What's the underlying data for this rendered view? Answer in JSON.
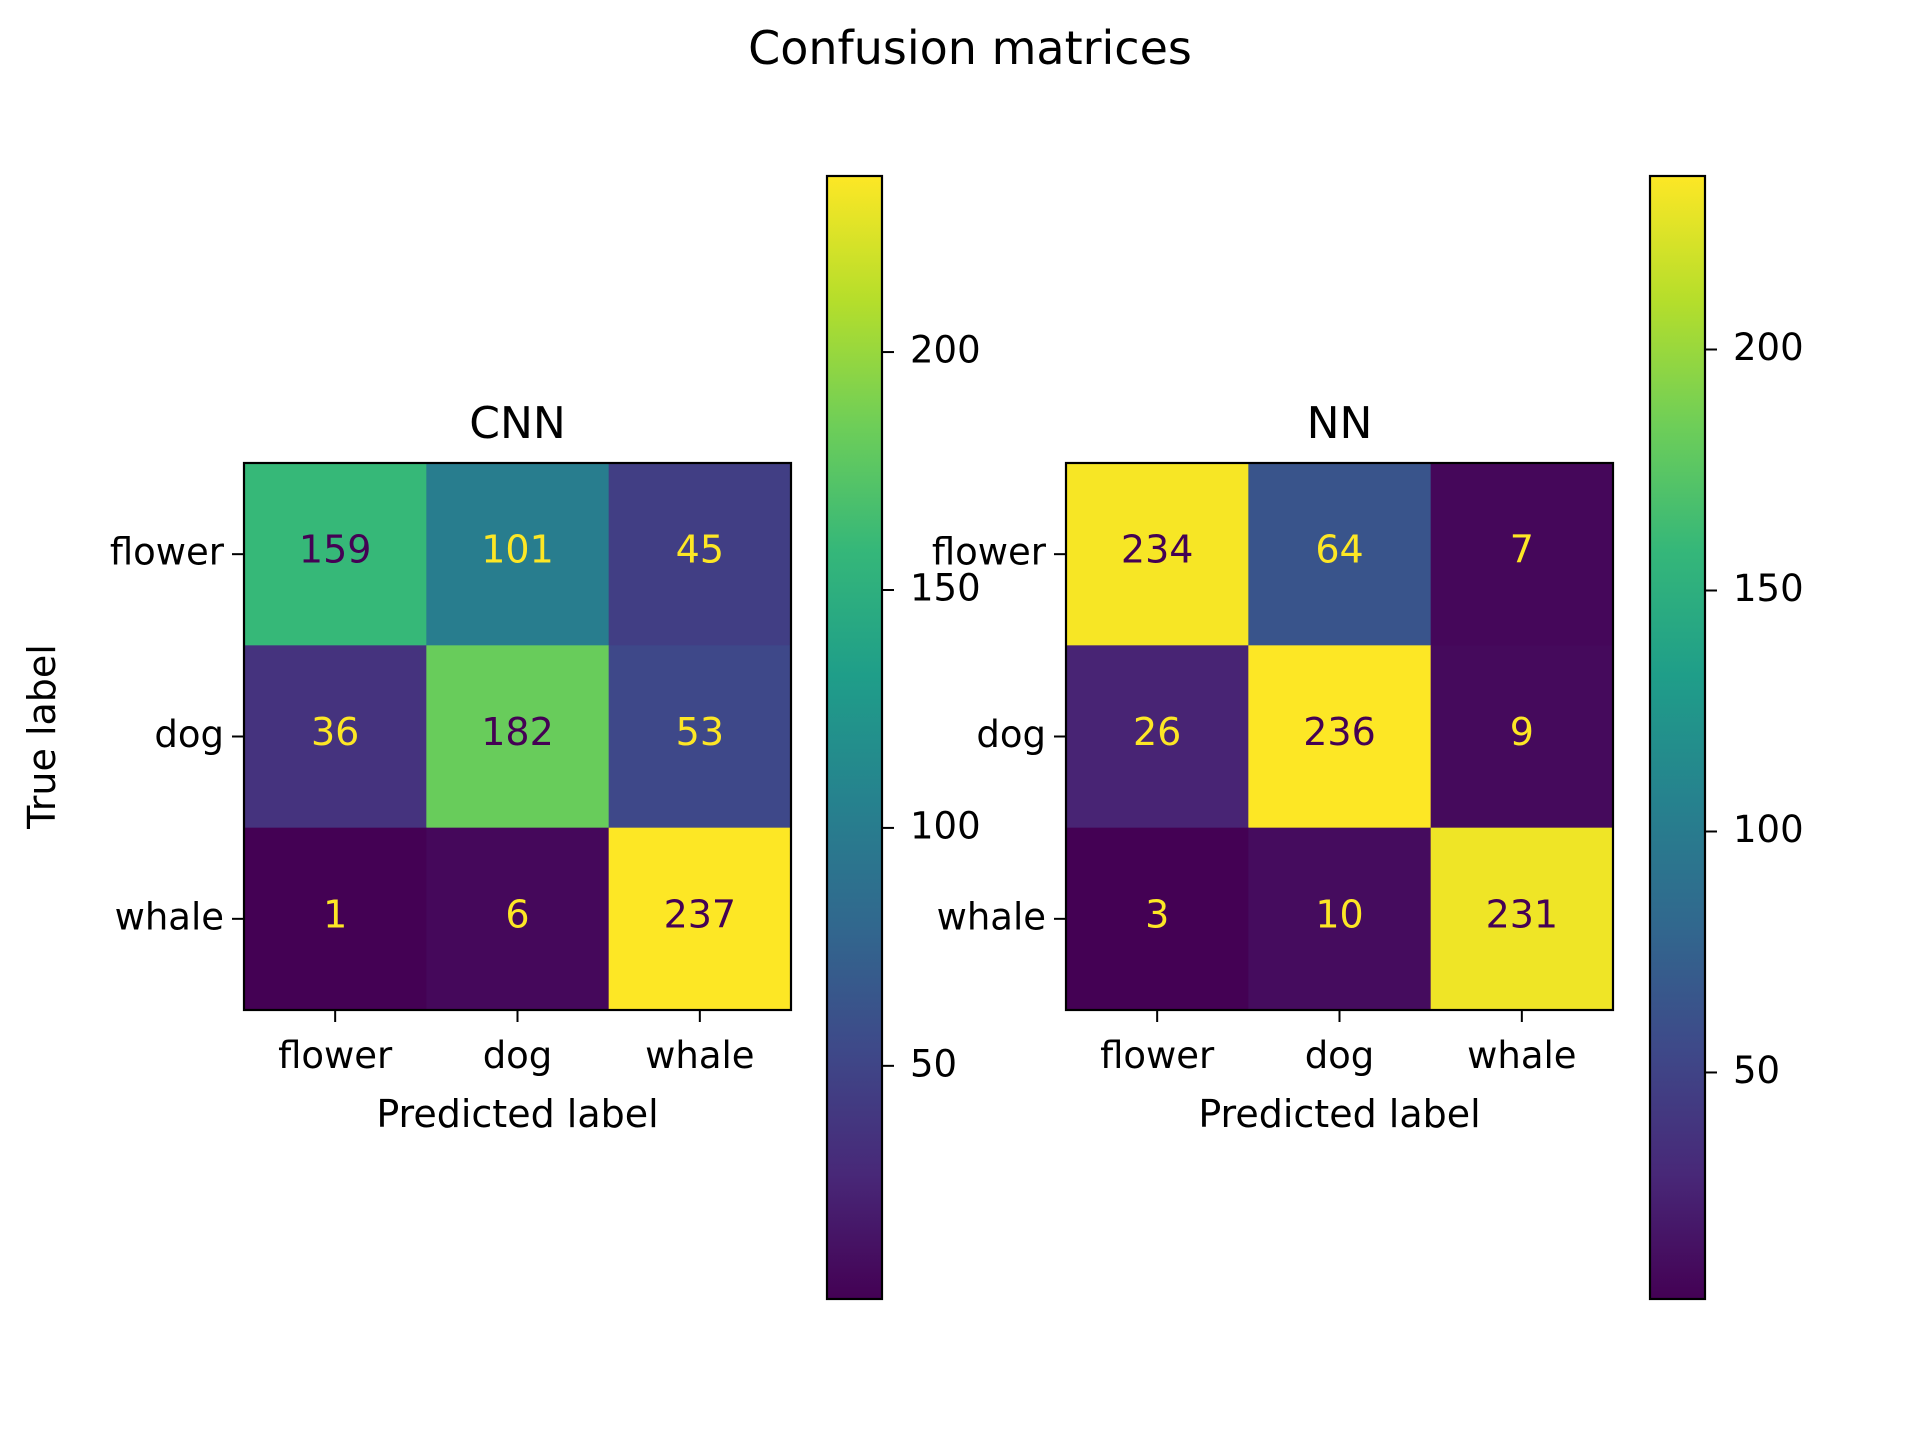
{
  "figure": {
    "title": "Confusion matrices"
  },
  "chart_data": [
    {
      "type": "heatmap",
      "title": "CNN",
      "xlabel": "Predicted label",
      "ylabel": "True label",
      "x_categories": [
        "flower",
        "dog",
        "whale"
      ],
      "y_categories": [
        "flower",
        "dog",
        "whale"
      ],
      "values": [
        [
          159,
          101,
          45
        ],
        [
          36,
          182,
          53
        ],
        [
          1,
          6,
          237
        ]
      ],
      "colormap": "viridis",
      "colorbar": {
        "min": 1,
        "max": 237,
        "ticks": [
          50,
          100,
          150,
          200
        ]
      }
    },
    {
      "type": "heatmap",
      "title": "NN",
      "xlabel": "Predicted label",
      "ylabel": "",
      "x_categories": [
        "flower",
        "dog",
        "whale"
      ],
      "y_categories": [
        "flower",
        "dog",
        "whale"
      ],
      "values": [
        [
          234,
          64,
          7
        ],
        [
          26,
          236,
          9
        ],
        [
          3,
          10,
          231
        ]
      ],
      "colormap": "viridis",
      "colorbar": {
        "min": 3,
        "max": 236,
        "ticks": [
          50,
          100,
          150,
          200
        ]
      }
    }
  ],
  "colors": {
    "viridis": [
      "#440154",
      "#482878",
      "#3e4989",
      "#31688e",
      "#26828e",
      "#1f9e89",
      "#35b779",
      "#6ece58",
      "#b5de2b",
      "#fde725"
    ],
    "text_light": "#fde725",
    "text_dark": "#440154"
  }
}
